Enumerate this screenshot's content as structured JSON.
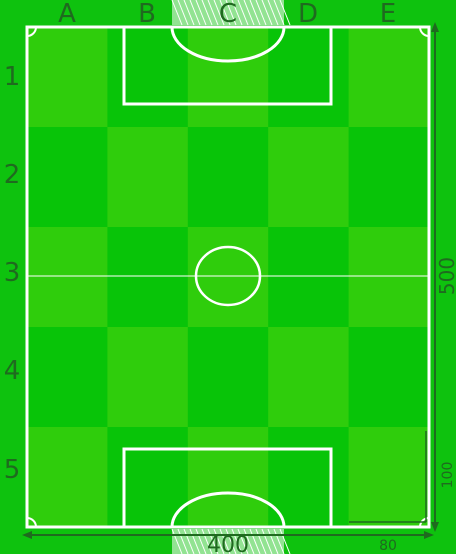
{
  "field": {
    "columns": [
      "A",
      "B",
      "C",
      "D",
      "E"
    ],
    "rows": [
      "1",
      "2",
      "3",
      "4",
      "5"
    ],
    "length_label": "500",
    "width_label": "400",
    "penalty_depth_label": "100",
    "penalty_offset_label": "80"
  },
  "colors": {
    "background": "#0ec20e",
    "tile_light": "#2fcd0c",
    "tile_dark": "#08c408",
    "lines": "#ffffff",
    "labels": "#1f6a1f"
  }
}
